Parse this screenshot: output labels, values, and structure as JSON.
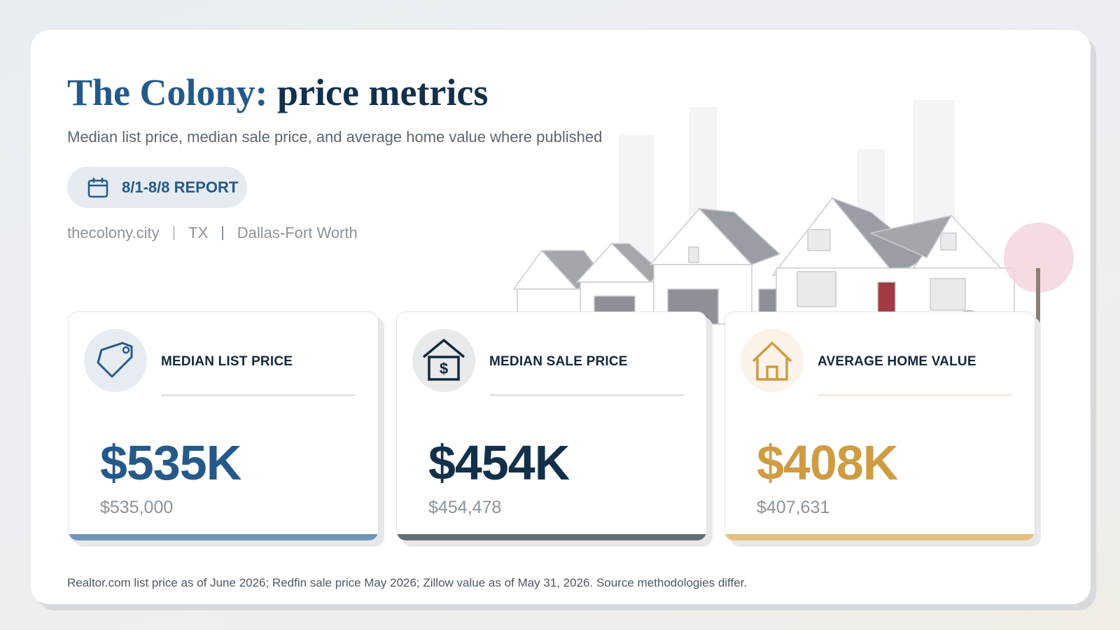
{
  "header": {
    "title_place": "The Colony:",
    "title_rest": "price metrics",
    "subtitle": "Median list price, median sale price, and average home value where published",
    "badge": "8/1-8/8 REPORT",
    "meta": [
      "thecolony.city",
      "TX",
      "Dallas-Fort Worth"
    ]
  },
  "cards": [
    {
      "label": "MEDIAN LIST PRICE",
      "value": "$535K",
      "exact": "$535,000"
    },
    {
      "label": "MEDIAN SALE PRICE",
      "value": "$454K",
      "exact": "$454,478"
    },
    {
      "label": "AVERAGE HOME VALUE",
      "value": "$408K",
      "exact": "$407,631"
    }
  ],
  "footnote": "Realtor.com list price as of June 2026; Redfin sale price May 2026; Zillow value as of May 31, 2026. Source methodologies differ."
}
